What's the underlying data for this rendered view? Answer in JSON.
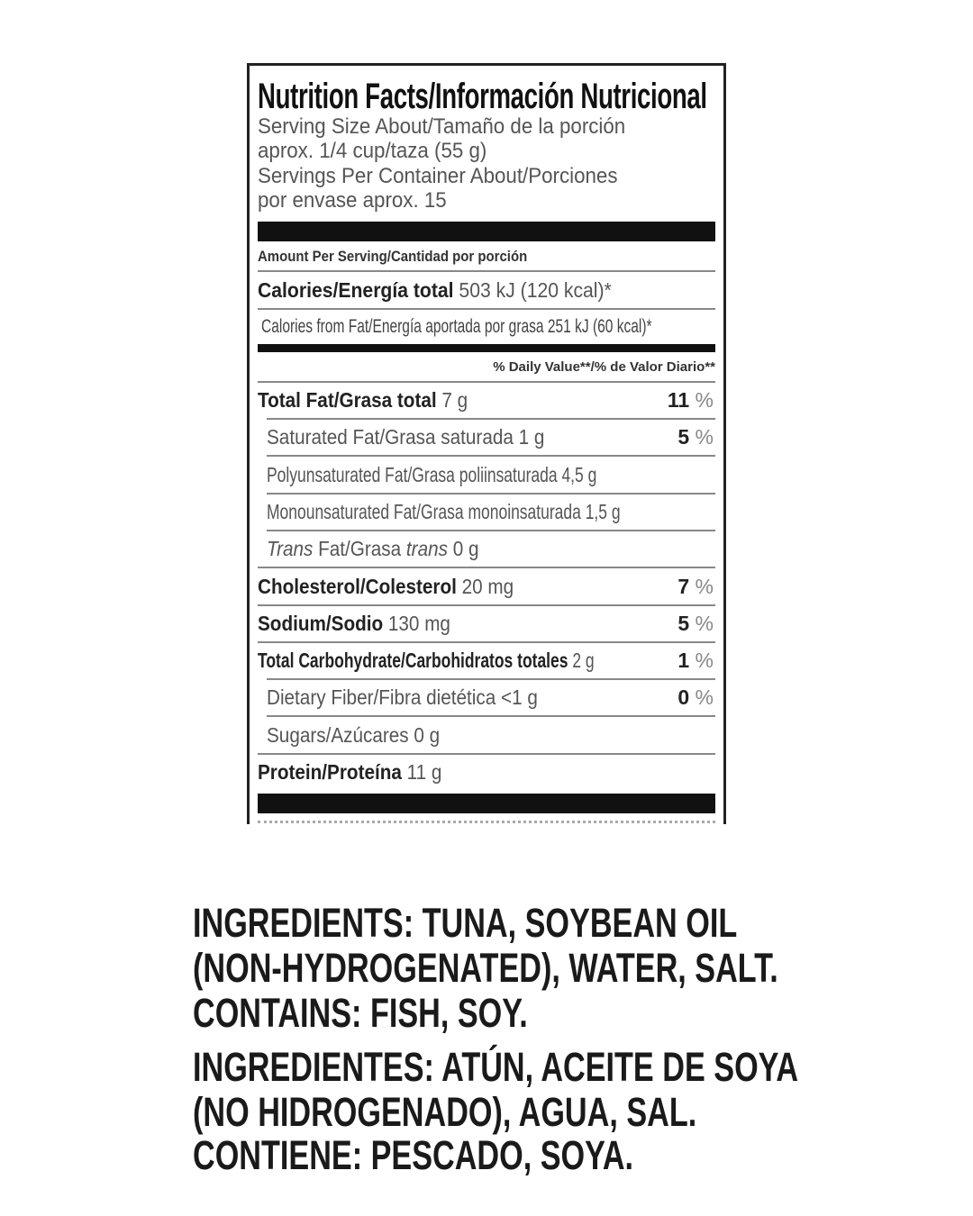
{
  "label": {
    "title": "Nutrition Facts/Información Nutricional",
    "serving_lines": [
      "Serving Size About/Tamaño de la porción",
      "aprox. 1/4 cup/taza (55 g)",
      "Servings Per Container About/Porciones",
      "por envase aprox. 15"
    ],
    "amount_per_serving": "Amount Per Serving/Cantidad por porción",
    "calories": {
      "label": "Calories/Energía total",
      "value": "503 kJ (120 kcal)*"
    },
    "calories_from_fat": "Calories from Fat/Energía aportada por grasa 251 kJ (60 kcal)*",
    "daily_value_header": "% Daily Value**/% de Valor Diario**",
    "nutrients": [
      {
        "label": "Total Fat/Grasa total",
        "amount": "7 g",
        "dv": "11",
        "bold": true
      },
      {
        "label": "Saturated Fat/Grasa saturada",
        "amount": "1 g",
        "dv": "5",
        "sub": true
      },
      {
        "label": "Polyunsaturated Fat/Grasa poliinsaturada",
        "amount": "4,5 g",
        "sub": true
      },
      {
        "label": "Monounsaturated Fat/Grasa monoinsaturada",
        "amount": "1,5 g",
        "sub": true
      },
      {
        "label_parts": [
          "Trans",
          " Fat/Grasa ",
          "trans"
        ],
        "amount": "0 g",
        "sub": true
      },
      {
        "label": "Cholesterol/Colesterol",
        "amount": "20 mg",
        "dv": "7",
        "bold": true
      },
      {
        "label": "Sodium/Sodio",
        "amount": "130 mg",
        "dv": "5",
        "bold": true
      },
      {
        "label": "Total Carbohydrate/Carbohidratos totales",
        "amount": "2 g",
        "dv": "1",
        "bold": true
      },
      {
        "label": "Dietary Fiber/Fibra dietética",
        "amount": "<1 g",
        "dv": "0",
        "sub": true
      },
      {
        "label": "Sugars/Azúcares",
        "amount": "0 g",
        "sub": true
      },
      {
        "label": "Protein/Proteína",
        "amount": "11 g",
        "bold": true
      }
    ],
    "percent_sign": "%"
  },
  "ingredients": {
    "lines": [
      "INGREDIENTS: TUNA, SOYBEAN OIL",
      "(NON-HYDROGENATED), WATER, SALT.",
      "CONTAINS: FISH, SOY.",
      "INGREDIENTES: ATÚN, ACEITE DE SOYA",
      "(NO HIDROGENADO), AGUA, SAL.",
      "CONTIENE: PESCADO, SOYA."
    ]
  }
}
